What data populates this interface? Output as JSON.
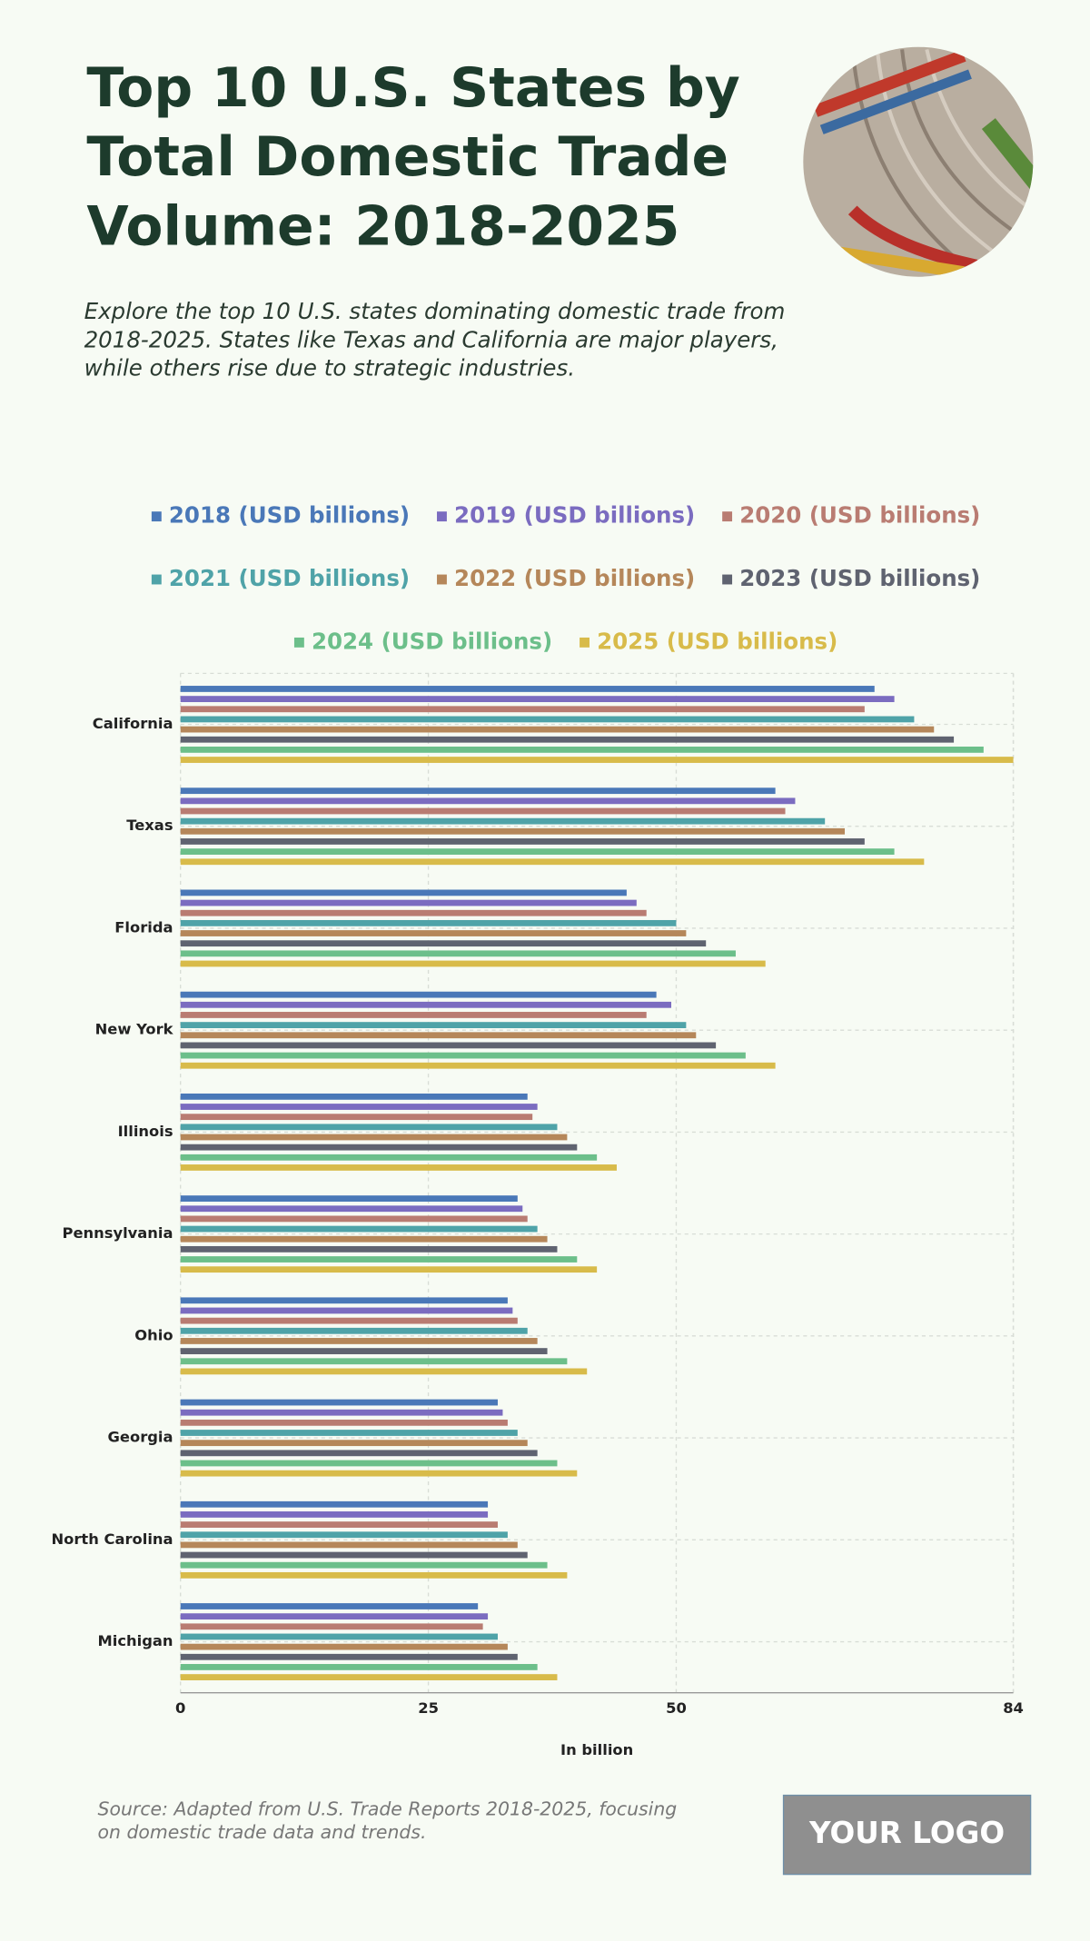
{
  "chart_data": {
    "type": "bar",
    "orientation": "horizontal",
    "title": "Top 10 U.S. States by Total Domestic Trade Volume: 2018-2025",
    "subtitle": "Explore the top 10 U.S. states dominating domestic trade from 2018-2025. States like Texas and California are major players, while others rise due to strategic industries.",
    "source": "Source: Adapted from U.S. Trade Reports 2018-2025, focusing on domestic trade data and trends.",
    "x_label": "In billion",
    "categories": [
      "California",
      "Texas",
      "Florida",
      "New York",
      "Illinois",
      "Pennsylvania",
      "Ohio",
      "Georgia",
      "North Carolina",
      "Michigan"
    ],
    "series": [
      {
        "name": "2018 (USD billions)",
        "color": "#4a78b8",
        "values": [
          70,
          60,
          45,
          48,
          35,
          34,
          33,
          32,
          31,
          30
        ]
      },
      {
        "name": "2019 (USD billions)",
        "color": "#7b6cc0",
        "values": [
          72,
          62,
          46,
          49.5,
          36,
          34.5,
          33.5,
          32.5,
          31,
          31
        ]
      },
      {
        "name": "2020 (USD billions)",
        "color": "#b97c72",
        "values": [
          69,
          61,
          47,
          47,
          35.5,
          35,
          34,
          33,
          32,
          30.5
        ]
      },
      {
        "name": "2021 (USD billions)",
        "color": "#4fa3a8",
        "values": [
          74,
          65,
          50,
          51,
          38,
          36,
          35,
          34,
          33,
          32
        ]
      },
      {
        "name": "2022 (USD billions)",
        "color": "#b5875a",
        "values": [
          76,
          67,
          51,
          52,
          39,
          37,
          36,
          35,
          34,
          33
        ]
      },
      {
        "name": "2023 (USD billions)",
        "color": "#5f6370",
        "values": [
          78,
          69,
          53,
          54,
          40,
          38,
          37,
          36,
          35,
          34
        ]
      },
      {
        "name": "2024 (USD billions)",
        "color": "#6cbf8a",
        "values": [
          81,
          72,
          56,
          57,
          42,
          40,
          39,
          38,
          37,
          36
        ]
      },
      {
        "name": "2025 (USD billions)",
        "color": "#d8bb4a",
        "values": [
          84,
          75,
          59,
          60,
          44,
          42,
          41,
          40,
          39,
          38
        ]
      }
    ],
    "xlim": [
      0,
      84
    ],
    "xticks": [
      0,
      25,
      50,
      84
    ],
    "grid": true
  },
  "logo": "YOUR LOGO"
}
